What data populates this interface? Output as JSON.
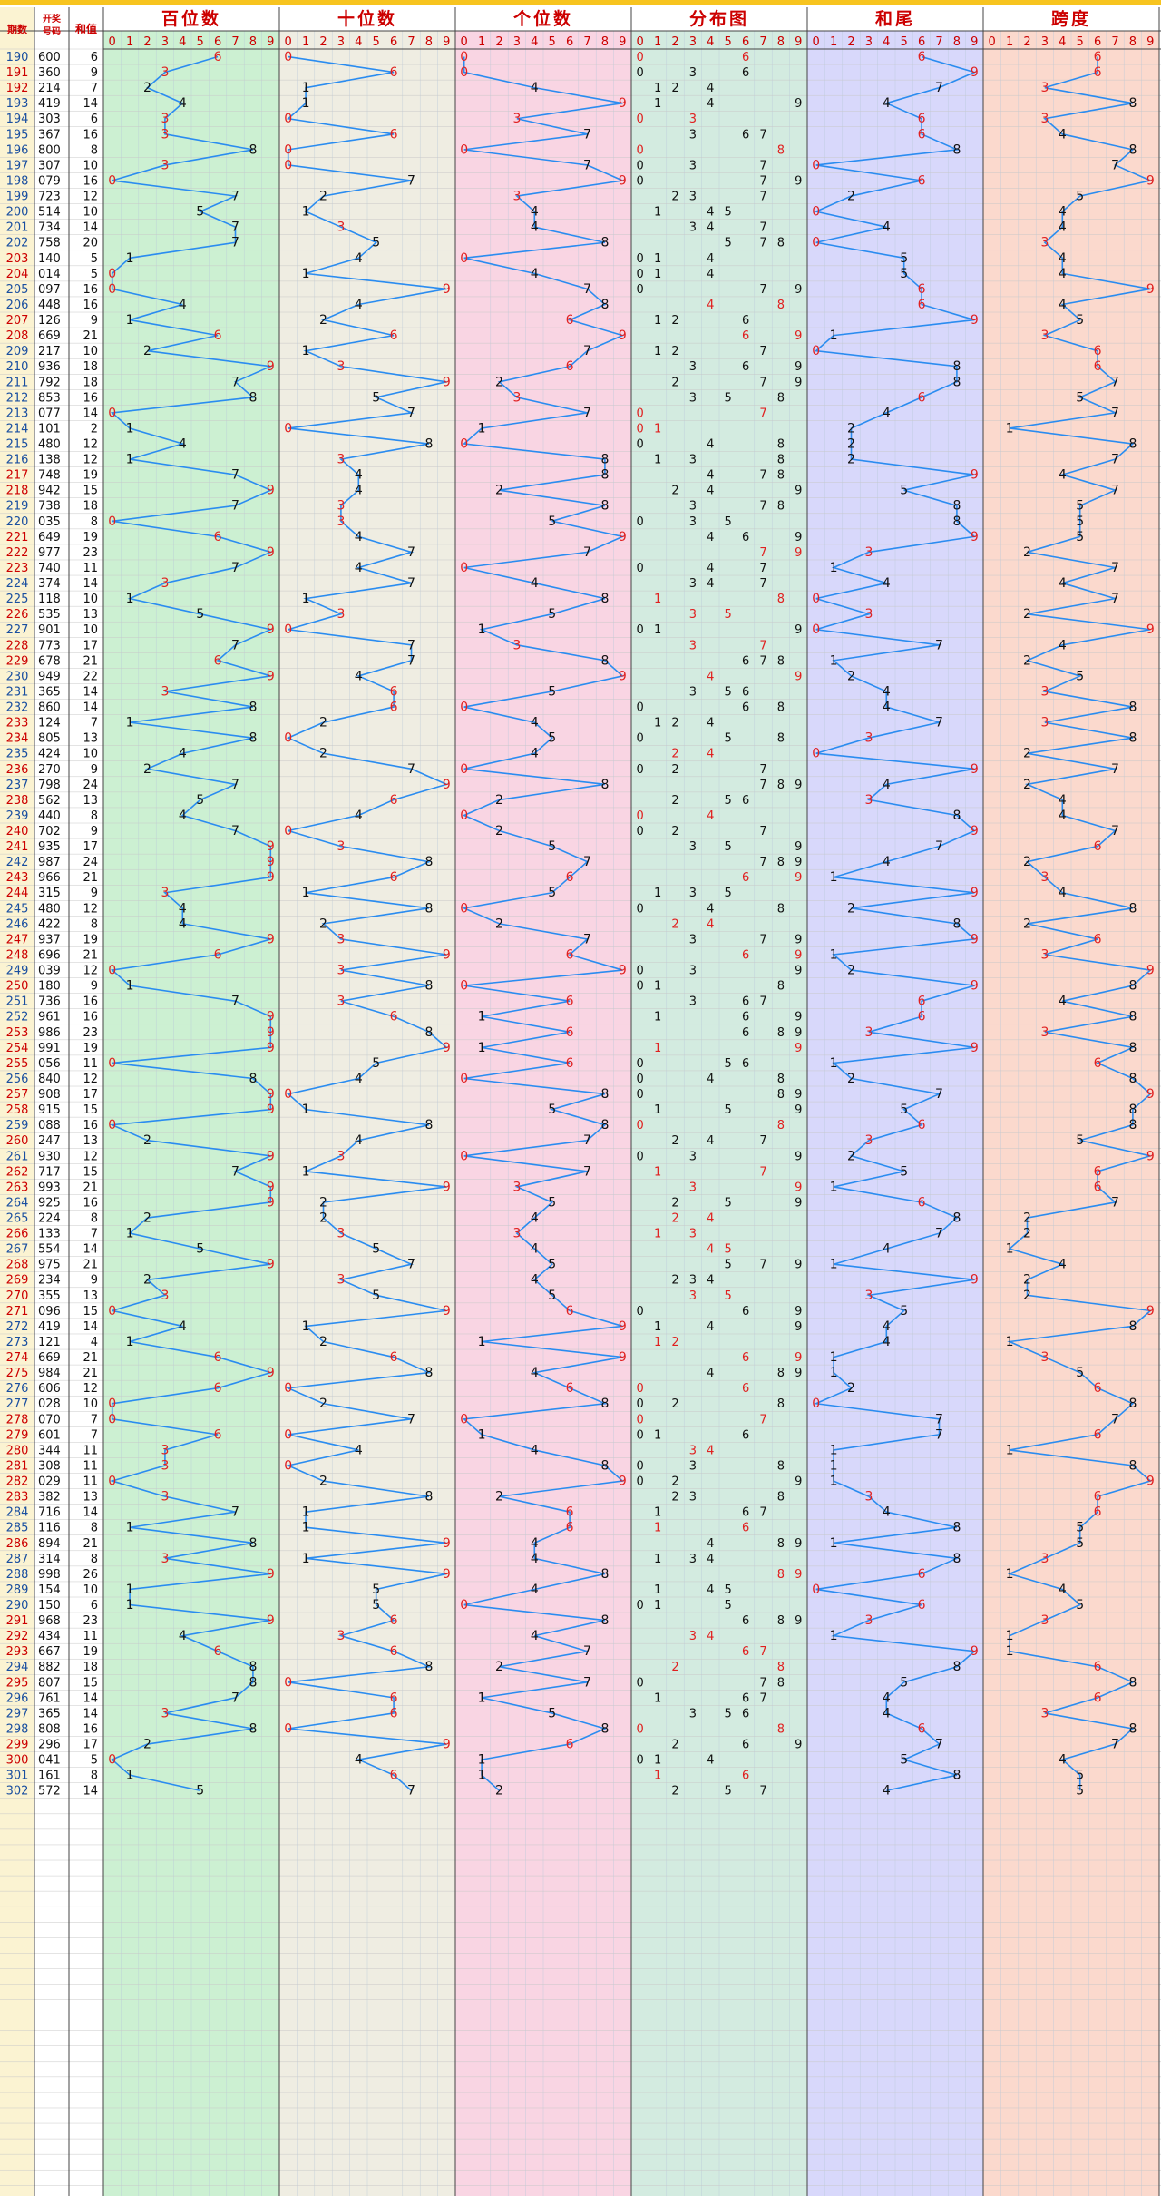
{
  "headers": {
    "period": "期数",
    "draw": "开奖号码",
    "sum": "和值",
    "hundreds": "百位数",
    "tens": "十位数",
    "units": "个位数",
    "distribution": "分布图",
    "sum_tail": "和尾",
    "span": "跨度"
  },
  "digits": [
    "0",
    "1",
    "2",
    "3",
    "4",
    "5",
    "6",
    "7",
    "8",
    "9"
  ],
  "colors": {
    "hundreds": "#ccf0d2",
    "tens": "#efede2",
    "units": "#f9d5e3",
    "distribution": "#d3ebe0",
    "sum_tail": "#d8d8fb",
    "span": "#fbd9cd",
    "header_text": "#cc0000",
    "line": "#2a8cf0",
    "top_bar": "#f7c41f",
    "left_col": "#fbf3d2"
  },
  "chart_data": {
    "type": "table",
    "start_period": 190,
    "draws": [
      "600",
      "360",
      "214",
      "419",
      "303",
      "367",
      "800",
      "307",
      "079",
      "723",
      "514",
      "734",
      "758",
      "140",
      "014",
      "097",
      "448",
      "126",
      "669",
      "217",
      "936",
      "792",
      "853",
      "077",
      "101",
      "480",
      "138",
      "748",
      "942",
      "738",
      "035",
      "649",
      "977",
      "740",
      "374",
      "118",
      "535",
      "901",
      "773",
      "678",
      "949",
      "365",
      "860",
      "124",
      "805",
      "424",
      "270",
      "798",
      "562",
      "440",
      "702",
      "935",
      "987",
      "966",
      "315",
      "480",
      "422",
      "937",
      "696",
      "039",
      "180",
      "736",
      "961",
      "986",
      "991",
      "056",
      "840",
      "908",
      "915",
      "088",
      "247",
      "930",
      "717",
      "993",
      "925",
      "224",
      "133",
      "554",
      "975",
      "234",
      "355",
      "096",
      "419",
      "121",
      "669",
      "984",
      "606",
      "028",
      "070",
      "601",
      "344",
      "308",
      "029",
      "382",
      "716",
      "116",
      "894",
      "314",
      "998",
      "154",
      "150",
      "968",
      "434",
      "667",
      "882",
      "807",
      "761",
      "365",
      "808",
      "296",
      "041",
      "161",
      "572"
    ]
  }
}
